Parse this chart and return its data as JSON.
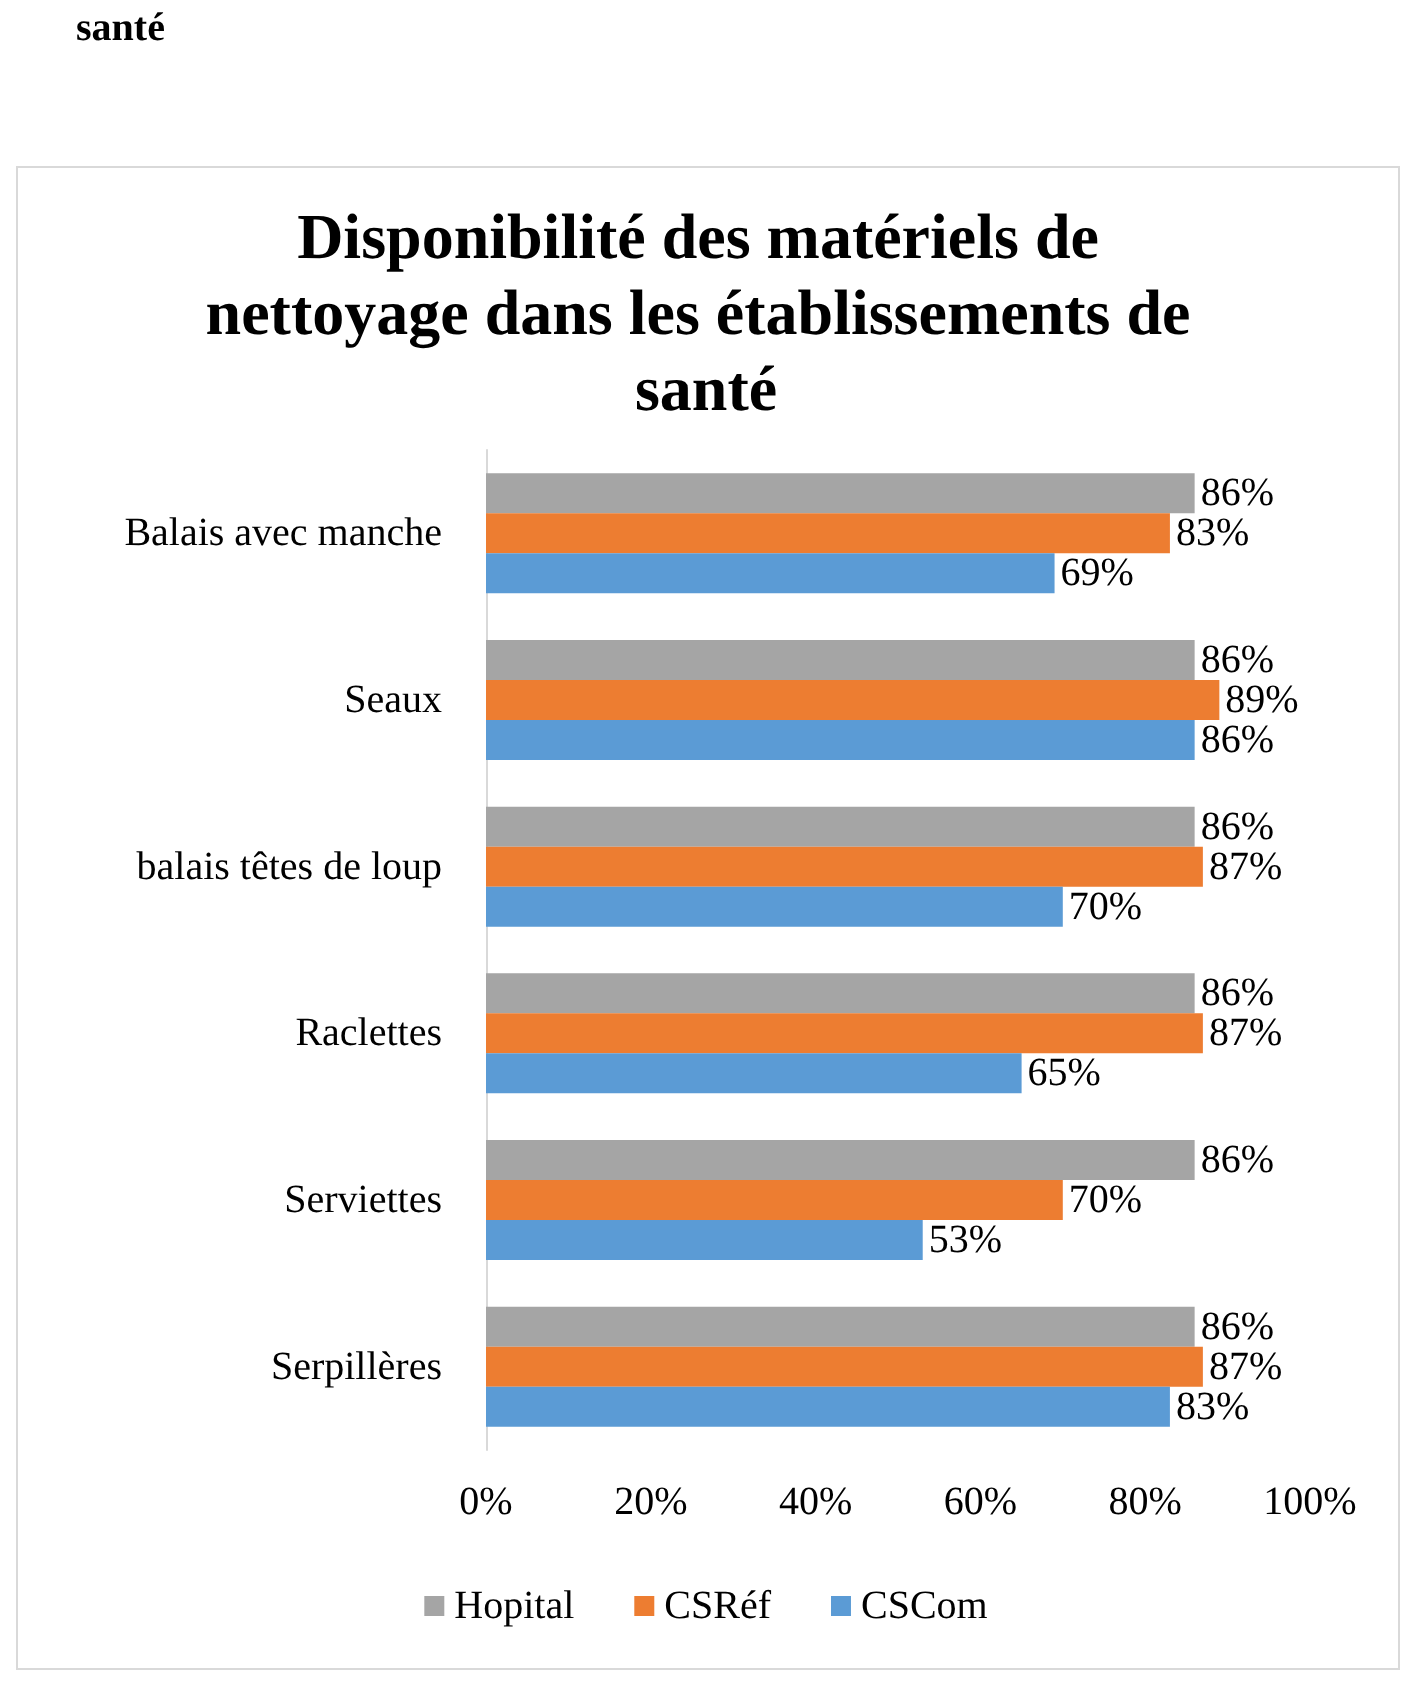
{
  "chart_data": {
    "type": "bar",
    "orientation": "horizontal",
    "title": "Disponibilité des matériels de nettoyage dans les établissements de santé",
    "annotations": [
      "santé"
    ],
    "categories": [
      "Balais avec manche",
      "Seaux",
      "balais têtes de loup",
      "Raclettes",
      "Serviettes",
      "Serpillères"
    ],
    "series": [
      {
        "name": "Hopital",
        "color": "#a5a5a5",
        "values": [
          86,
          86,
          86,
          86,
          86,
          86
        ],
        "value_labels": [
          "86%",
          "86%",
          "86%",
          "86%",
          "86%",
          "86%"
        ]
      },
      {
        "name": "CSRéf",
        "color": "#ed7d31",
        "values": [
          83,
          89,
          87,
          87,
          70,
          87
        ],
        "value_labels": [
          "83%",
          "89%",
          "87%",
          "87%",
          "70%",
          "87%"
        ]
      },
      {
        "name": "CSCom",
        "color": "#5b9bd5",
        "values": [
          69,
          86,
          70,
          65,
          53,
          83
        ],
        "value_labels": [
          "69%",
          "86%",
          "70%",
          "65%",
          "53%",
          "83%"
        ]
      }
    ],
    "xlim": [
      0,
      100
    ],
    "xticks": [
      {
        "value": 0,
        "label": "0%"
      },
      {
        "value": 20,
        "label": "20%"
      },
      {
        "value": 40,
        "label": "40%"
      },
      {
        "value": 60,
        "label": "60%"
      },
      {
        "value": 80,
        "label": "80%"
      },
      {
        "value": 100,
        "label": "100%"
      }
    ],
    "legend": "bottom",
    "grid": false
  }
}
